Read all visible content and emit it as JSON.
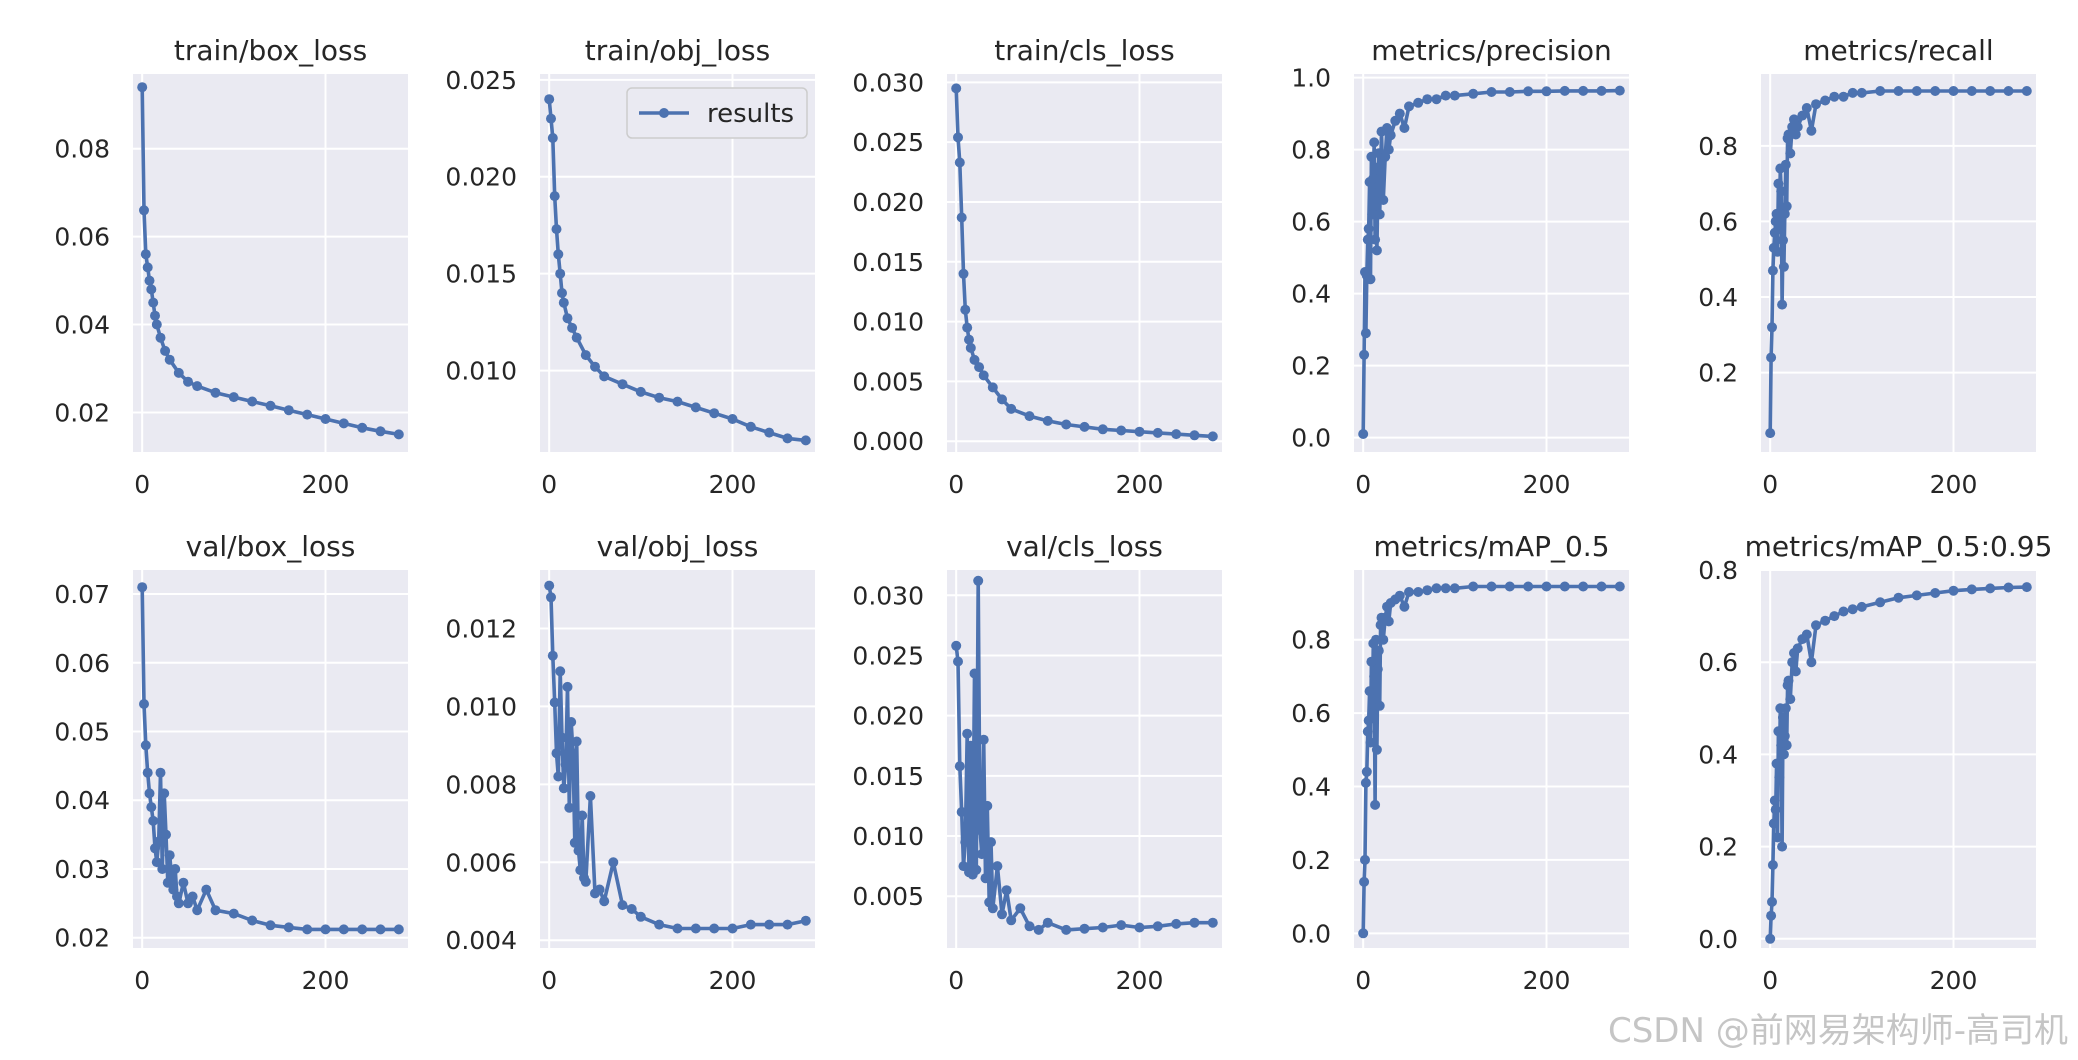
{
  "watermark": "CSDN @前网易架构师-高司机",
  "chart_data": [
    {
      "type": "line",
      "title": "train/box_loss",
      "legend": null,
      "xticks": [
        0,
        200
      ],
      "ylim": [
        0.011,
        0.097
      ],
      "yticks": [
        0.02,
        0.04,
        0.06,
        0.08
      ],
      "ytick_labels": [
        "0.02",
        "0.04",
        "0.06",
        "0.08"
      ],
      "x": [
        0,
        2,
        4,
        6,
        8,
        10,
        12,
        14,
        16,
        20,
        25,
        30,
        40,
        50,
        60,
        80,
        100,
        120,
        140,
        160,
        180,
        200,
        220,
        240,
        260,
        280
      ],
      "y": [
        0.094,
        0.066,
        0.056,
        0.053,
        0.05,
        0.048,
        0.045,
        0.042,
        0.04,
        0.037,
        0.034,
        0.032,
        0.029,
        0.027,
        0.026,
        0.0245,
        0.0235,
        0.0225,
        0.0215,
        0.0205,
        0.0195,
        0.0185,
        0.0175,
        0.0165,
        0.0157,
        0.015
      ]
    },
    {
      "type": "line",
      "title": "train/obj_loss",
      "legend": {
        "label": "results",
        "loc": "upper right"
      },
      "xticks": [
        0,
        200
      ],
      "ylim": [
        0.0058,
        0.0253
      ],
      "yticks": [
        0.01,
        0.015,
        0.02,
        0.025
      ],
      "ytick_labels": [
        "0.010",
        "0.015",
        "0.020",
        "0.025"
      ],
      "x": [
        0,
        2,
        4,
        6,
        8,
        10,
        12,
        14,
        16,
        20,
        25,
        30,
        40,
        50,
        60,
        80,
        100,
        120,
        140,
        160,
        180,
        200,
        220,
        240,
        260,
        280
      ],
      "y": [
        0.024,
        0.023,
        0.022,
        0.019,
        0.0173,
        0.016,
        0.015,
        0.014,
        0.0135,
        0.0127,
        0.0122,
        0.0117,
        0.0108,
        0.0102,
        0.0097,
        0.0093,
        0.0089,
        0.0086,
        0.0084,
        0.0081,
        0.0078,
        0.0075,
        0.0071,
        0.0068,
        0.0065,
        0.0064
      ]
    },
    {
      "type": "line",
      "title": "train/cls_loss",
      "legend": null,
      "xticks": [
        0,
        200
      ],
      "ylim": [
        -0.0009,
        0.0307
      ],
      "yticks": [
        0,
        0.005,
        0.01,
        0.015,
        0.02,
        0.025,
        0.03
      ],
      "ytick_labels": [
        "0.000",
        "0.005",
        "0.010",
        "0.015",
        "0.020",
        "0.025",
        "0.030"
      ],
      "x": [
        0,
        2,
        4,
        6,
        8,
        10,
        12,
        14,
        16,
        20,
        25,
        30,
        40,
        50,
        60,
        80,
        100,
        120,
        140,
        160,
        180,
        200,
        220,
        240,
        260,
        280
      ],
      "y": [
        0.0295,
        0.0254,
        0.0233,
        0.0187,
        0.014,
        0.011,
        0.0095,
        0.0085,
        0.0078,
        0.0068,
        0.0062,
        0.0055,
        0.0045,
        0.0035,
        0.0027,
        0.0021,
        0.0017,
        0.0014,
        0.0012,
        0.001,
        0.0009,
        0.0008,
        0.0007,
        0.0006,
        0.0005,
        0.0004
      ]
    },
    {
      "type": "line",
      "title": "metrics/precision",
      "legend": null,
      "xticks": [
        0,
        200
      ],
      "ylim": [
        -0.04,
        1.01
      ],
      "yticks": [
        0,
        0.2,
        0.4,
        0.6,
        0.8,
        1.0
      ],
      "ytick_labels": [
        "0.0",
        "0.2",
        "0.4",
        "0.6",
        "0.8",
        "1.0"
      ],
      "x": [
        0,
        1,
        2,
        3,
        4,
        5,
        6,
        7,
        8,
        9,
        10,
        11,
        12,
        13,
        14,
        15,
        16,
        17,
        18,
        19,
        20,
        22,
        24,
        26,
        28,
        30,
        35,
        40,
        45,
        50,
        60,
        70,
        80,
        90,
        100,
        120,
        140,
        160,
        180,
        200,
        220,
        240,
        260,
        280
      ],
      "y": [
        0.01,
        0.23,
        0.46,
        0.29,
        0.45,
        0.55,
        0.58,
        0.71,
        0.44,
        0.78,
        0.62,
        0.72,
        0.82,
        0.55,
        0.75,
        0.52,
        0.68,
        0.79,
        0.62,
        0.74,
        0.85,
        0.66,
        0.78,
        0.86,
        0.8,
        0.84,
        0.88,
        0.9,
        0.86,
        0.92,
        0.93,
        0.94,
        0.94,
        0.95,
        0.95,
        0.955,
        0.96,
        0.96,
        0.962,
        0.962,
        0.963,
        0.963,
        0.963,
        0.964
      ]
    },
    {
      "type": "line",
      "title": "metrics/recall",
      "legend": null,
      "xticks": [
        0,
        200
      ],
      "ylim": [
        -0.01,
        0.99
      ],
      "yticks": [
        0.2,
        0.4,
        0.6,
        0.8
      ],
      "ytick_labels": [
        "0.2",
        "0.4",
        "0.6",
        "0.8"
      ],
      "x": [
        0,
        1,
        2,
        3,
        4,
        5,
        6,
        7,
        8,
        9,
        10,
        11,
        12,
        13,
        14,
        15,
        16,
        17,
        18,
        19,
        20,
        22,
        24,
        26,
        28,
        30,
        35,
        40,
        45,
        50,
        60,
        70,
        80,
        90,
        100,
        120,
        140,
        160,
        180,
        200,
        220,
        240,
        260,
        280
      ],
      "y": [
        0.04,
        0.24,
        0.32,
        0.47,
        0.53,
        0.57,
        0.6,
        0.62,
        0.52,
        0.7,
        0.58,
        0.74,
        0.68,
        0.38,
        0.55,
        0.48,
        0.62,
        0.75,
        0.64,
        0.82,
        0.83,
        0.78,
        0.85,
        0.87,
        0.83,
        0.85,
        0.88,
        0.9,
        0.84,
        0.91,
        0.92,
        0.93,
        0.93,
        0.94,
        0.94,
        0.945,
        0.945,
        0.945,
        0.945,
        0.945,
        0.945,
        0.945,
        0.945,
        0.945
      ]
    },
    {
      "type": "line",
      "title": "val/box_loss",
      "legend": null,
      "xticks": [
        0,
        200
      ],
      "ylim": [
        0.0185,
        0.0735
      ],
      "yticks": [
        0.02,
        0.03,
        0.04,
        0.05,
        0.06,
        0.07
      ],
      "ytick_labels": [
        "0.02",
        "0.03",
        "0.04",
        "0.05",
        "0.06",
        "0.07"
      ],
      "x": [
        0,
        2,
        4,
        6,
        8,
        10,
        12,
        14,
        16,
        18,
        20,
        22,
        24,
        26,
        28,
        30,
        32,
        34,
        36,
        38,
        40,
        45,
        50,
        55,
        60,
        70,
        80,
        100,
        120,
        140,
        160,
        180,
        200,
        220,
        240,
        260,
        280
      ],
      "y": [
        0.071,
        0.054,
        0.048,
        0.044,
        0.041,
        0.039,
        0.037,
        0.033,
        0.031,
        0.034,
        0.044,
        0.03,
        0.041,
        0.035,
        0.028,
        0.032,
        0.029,
        0.027,
        0.03,
        0.026,
        0.025,
        0.028,
        0.025,
        0.026,
        0.024,
        0.027,
        0.024,
        0.0235,
        0.0225,
        0.0218,
        0.0215,
        0.0212,
        0.0212,
        0.0212,
        0.0212,
        0.0212,
        0.0212
      ]
    },
    {
      "type": "line",
      "title": "val/obj_loss",
      "legend": null,
      "xticks": [
        0,
        200
      ],
      "ylim": [
        0.0038,
        0.0135
      ],
      "yticks": [
        0.004,
        0.006,
        0.008,
        0.01,
        0.012
      ],
      "ytick_labels": [
        "0.004",
        "0.006",
        "0.008",
        "0.010",
        "0.012"
      ],
      "x": [
        0,
        2,
        4,
        6,
        8,
        10,
        12,
        14,
        16,
        18,
        20,
        22,
        24,
        26,
        28,
        30,
        32,
        34,
        36,
        38,
        40,
        45,
        50,
        55,
        60,
        70,
        80,
        90,
        100,
        120,
        140,
        160,
        180,
        200,
        220,
        240,
        260,
        280
      ],
      "y": [
        0.0131,
        0.0128,
        0.0113,
        0.0101,
        0.0088,
        0.0082,
        0.0109,
        0.0092,
        0.0079,
        0.0085,
        0.0105,
        0.0074,
        0.0096,
        0.0088,
        0.0065,
        0.0091,
        0.0063,
        0.0058,
        0.0072,
        0.0056,
        0.0055,
        0.0077,
        0.0052,
        0.0053,
        0.005,
        0.006,
        0.0049,
        0.0048,
        0.0046,
        0.0044,
        0.0043,
        0.0043,
        0.0043,
        0.0043,
        0.0044,
        0.0044,
        0.0044,
        0.0045
      ]
    },
    {
      "type": "line",
      "title": "val/cls_loss",
      "legend": null,
      "xticks": [
        0,
        200
      ],
      "ylim": [
        0.0007,
        0.0321
      ],
      "yticks": [
        0.005,
        0.01,
        0.015,
        0.02,
        0.025,
        0.03
      ],
      "ytick_labels": [
        "0.005",
        "0.010",
        "0.015",
        "0.020",
        "0.025",
        "0.030"
      ],
      "x": [
        0,
        2,
        4,
        6,
        8,
        10,
        12,
        14,
        16,
        18,
        20,
        22,
        24,
        26,
        28,
        30,
        32,
        34,
        36,
        38,
        40,
        45,
        50,
        55,
        60,
        70,
        80,
        90,
        100,
        120,
        140,
        160,
        180,
        200,
        220,
        240,
        260,
        280
      ],
      "y": [
        0.0258,
        0.0245,
        0.0158,
        0.012,
        0.0075,
        0.0095,
        0.0185,
        0.007,
        0.0175,
        0.0068,
        0.0235,
        0.0072,
        0.0312,
        0.0105,
        0.0085,
        0.018,
        0.0065,
        0.0125,
        0.0045,
        0.0095,
        0.004,
        0.0075,
        0.0035,
        0.0055,
        0.003,
        0.004,
        0.0025,
        0.0022,
        0.0028,
        0.0022,
        0.0023,
        0.0024,
        0.0026,
        0.0024,
        0.0025,
        0.0027,
        0.0028,
        0.0028
      ]
    },
    {
      "type": "line",
      "title": "metrics/mAP_0.5",
      "legend": null,
      "xticks": [
        0,
        200
      ],
      "ylim": [
        -0.04,
        0.99
      ],
      "yticks": [
        0,
        0.2,
        0.4,
        0.6,
        0.8
      ],
      "ytick_labels": [
        "0.0",
        "0.2",
        "0.4",
        "0.6",
        "0.8"
      ],
      "x": [
        0,
        1,
        2,
        3,
        4,
        5,
        6,
        7,
        8,
        9,
        10,
        11,
        12,
        13,
        14,
        15,
        16,
        17,
        18,
        19,
        20,
        22,
        24,
        26,
        28,
        30,
        35,
        40,
        45,
        50,
        60,
        70,
        80,
        90,
        100,
        120,
        140,
        160,
        180,
        200,
        220,
        240,
        260,
        280
      ],
      "y": [
        0.0,
        0.14,
        0.2,
        0.41,
        0.44,
        0.55,
        0.58,
        0.66,
        0.52,
        0.74,
        0.6,
        0.79,
        0.7,
        0.35,
        0.8,
        0.5,
        0.72,
        0.77,
        0.62,
        0.84,
        0.86,
        0.8,
        0.86,
        0.89,
        0.85,
        0.9,
        0.91,
        0.92,
        0.89,
        0.93,
        0.93,
        0.935,
        0.94,
        0.94,
        0.94,
        0.945,
        0.945,
        0.945,
        0.945,
        0.945,
        0.945,
        0.945,
        0.945,
        0.945
      ]
    },
    {
      "type": "line",
      "title": "metrics/mAP_0.5:0.95",
      "legend": null,
      "xticks": [
        0,
        200
      ],
      "ylim": [
        -0.02,
        0.8
      ],
      "yticks": [
        0,
        0.2,
        0.4,
        0.6,
        0.8
      ],
      "ytick_labels": [
        "0.0",
        "0.2",
        "0.4",
        "0.6",
        "0.8"
      ],
      "x": [
        0,
        1,
        2,
        3,
        4,
        5,
        6,
        7,
        8,
        9,
        10,
        11,
        12,
        13,
        14,
        15,
        16,
        17,
        18,
        19,
        20,
        22,
        24,
        26,
        28,
        30,
        35,
        40,
        45,
        50,
        60,
        70,
        80,
        90,
        100,
        120,
        140,
        160,
        180,
        200,
        220,
        240,
        260,
        280
      ],
      "y": [
        0.0,
        0.05,
        0.08,
        0.16,
        0.25,
        0.3,
        0.28,
        0.38,
        0.22,
        0.45,
        0.35,
        0.5,
        0.42,
        0.2,
        0.48,
        0.4,
        0.44,
        0.5,
        0.42,
        0.55,
        0.56,
        0.52,
        0.6,
        0.62,
        0.58,
        0.63,
        0.65,
        0.66,
        0.6,
        0.68,
        0.69,
        0.7,
        0.71,
        0.715,
        0.72,
        0.73,
        0.74,
        0.745,
        0.75,
        0.755,
        0.758,
        0.76,
        0.762,
        0.763
      ]
    }
  ]
}
